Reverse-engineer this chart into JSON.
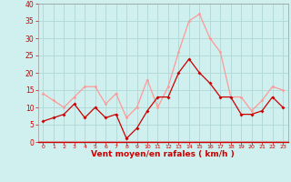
{
  "x": [
    0,
    1,
    2,
    3,
    4,
    5,
    6,
    7,
    8,
    9,
    10,
    11,
    12,
    13,
    14,
    15,
    16,
    17,
    18,
    19,
    20,
    21,
    22,
    23
  ],
  "wind_avg": [
    6,
    7,
    8,
    11,
    7,
    10,
    7,
    8,
    1,
    4,
    9,
    13,
    13,
    20,
    24,
    20,
    17,
    13,
    13,
    8,
    8,
    9,
    13,
    10
  ],
  "wind_gust": [
    14,
    12,
    10,
    13,
    16,
    16,
    11,
    14,
    7,
    10,
    18,
    10,
    16,
    26,
    35,
    37,
    30,
    26,
    13,
    13,
    9,
    12,
    16,
    15
  ],
  "line_avg_color": "#cc0000",
  "line_gust_color": "#ff9999",
  "bg_color": "#cff0ee",
  "grid_color": "#b0d8d4",
  "xlabel": "Vent moyen/en rafales ( km/h )",
  "xlabel_color": "#cc0000",
  "tick_color": "#cc0000",
  "spine_color": "#999999",
  "ylim": [
    0,
    40
  ],
  "yticks": [
    0,
    5,
    10,
    15,
    20,
    25,
    30,
    35,
    40
  ],
  "marker_avg": "D",
  "marker_gust": "o",
  "marker_size": 2.0,
  "line_width": 0.9
}
